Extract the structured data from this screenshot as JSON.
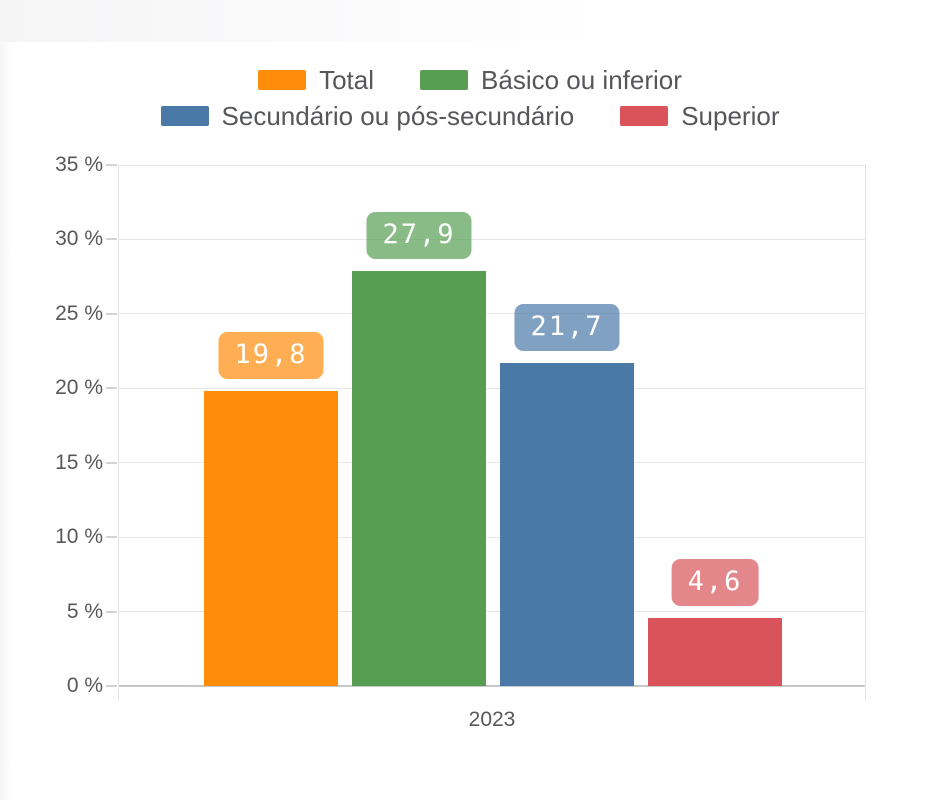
{
  "chart_data": {
    "type": "bar",
    "title": "",
    "xlabel": "",
    "ylabel": "",
    "categories": [
      "2023"
    ],
    "series": [
      {
        "name": "Total",
        "value": 19.8,
        "label": "19,8",
        "color": "#ff8c0a",
        "badge_color": "rgba(255,140,10,0.7)"
      },
      {
        "name": "Básico ou inferior",
        "value": 27.9,
        "label": "27,9",
        "color": "#579e52",
        "badge_color": "rgba(87,158,82,0.7)"
      },
      {
        "name": "Secundário ou pós-secundário",
        "value": 21.7,
        "label": "21,7",
        "color": "#4a79a7",
        "badge_color": "rgba(74,121,167,0.7)"
      },
      {
        "name": "Superior",
        "value": 4.6,
        "label": "4,6",
        "color": "#d8545a",
        "badge_color": "rgba(216,84,90,0.7)"
      }
    ],
    "ylim": [
      0,
      35
    ],
    "grid": true,
    "legend_position": "top",
    "legend_rows": [
      [
        "Total",
        "Básico ou inferior"
      ],
      [
        "Secundário ou pós-secundário",
        "Superior"
      ]
    ],
    "yticks": [
      {
        "value": 0,
        "label": "0 %"
      },
      {
        "value": 5,
        "label": "5 %"
      },
      {
        "value": 10,
        "label": "10 %"
      },
      {
        "value": 15,
        "label": "15 %"
      },
      {
        "value": 20,
        "label": "20 %"
      },
      {
        "value": 25,
        "label": "25 %"
      },
      {
        "value": 30,
        "label": "30 %"
      },
      {
        "value": 35,
        "label": "35 %"
      }
    ]
  }
}
